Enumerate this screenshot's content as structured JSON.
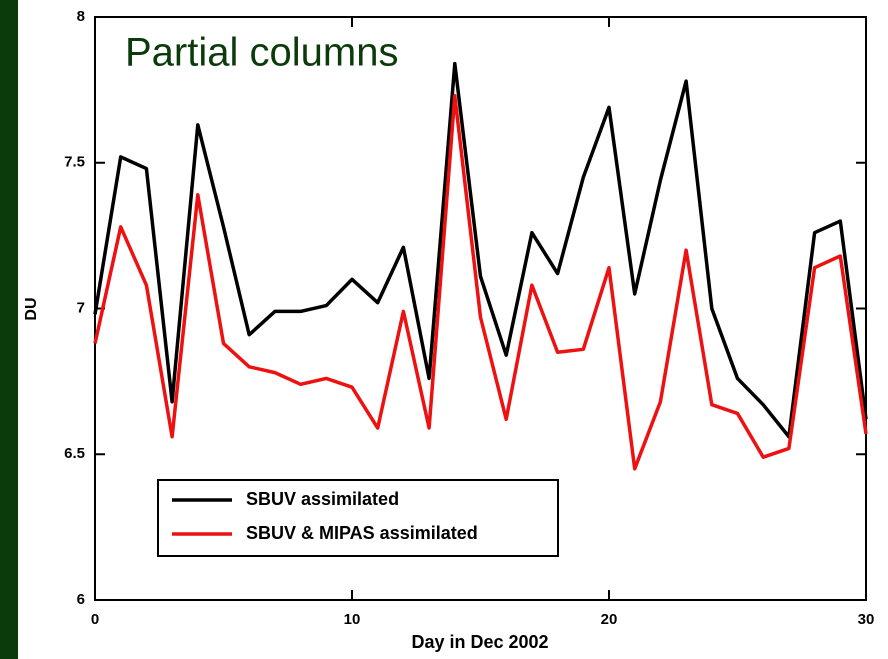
{
  "chart_data": {
    "type": "line",
    "title": "Partial columns",
    "xlabel": "Day in Dec 2002",
    "ylabel": "DU",
    "x": [
      0,
      1,
      2,
      3,
      4,
      5,
      6,
      7,
      8,
      9,
      10,
      11,
      12,
      13,
      14,
      15,
      16,
      17,
      18,
      19,
      20,
      21,
      22,
      23,
      24,
      25,
      26,
      27,
      28,
      29,
      30
    ],
    "series": [
      {
        "name": "SBUV assimilated",
        "color": "#000000",
        "values": [
          6.98,
          7.52,
          7.48,
          6.68,
          7.63,
          7.28,
          6.91,
          6.99,
          6.99,
          7.01,
          7.1,
          7.02,
          7.21,
          6.76,
          7.84,
          7.11,
          6.84,
          7.26,
          7.12,
          7.45,
          7.69,
          7.05,
          7.44,
          7.78,
          7.0,
          6.76,
          6.67,
          6.56,
          7.26,
          7.3,
          6.62
        ]
      },
      {
        "name": "SBUV & MIPAS assimilated",
        "color": "#ee1111",
        "values": [
          6.88,
          7.28,
          7.08,
          6.56,
          7.39,
          6.88,
          6.8,
          6.78,
          6.74,
          6.76,
          6.73,
          6.59,
          6.99,
          6.59,
          7.73,
          6.97,
          6.62,
          7.08,
          6.85,
          6.86,
          7.14,
          6.45,
          6.68,
          7.2,
          6.67,
          6.64,
          6.49,
          6.52,
          7.14,
          7.18,
          6.57
        ]
      }
    ],
    "xlim": [
      0,
      30
    ],
    "xticks": [
      0,
      10,
      20,
      30
    ],
    "ylim": [
      6,
      8
    ],
    "yticks": [
      6,
      6.5,
      7,
      7.5,
      8
    ]
  }
}
